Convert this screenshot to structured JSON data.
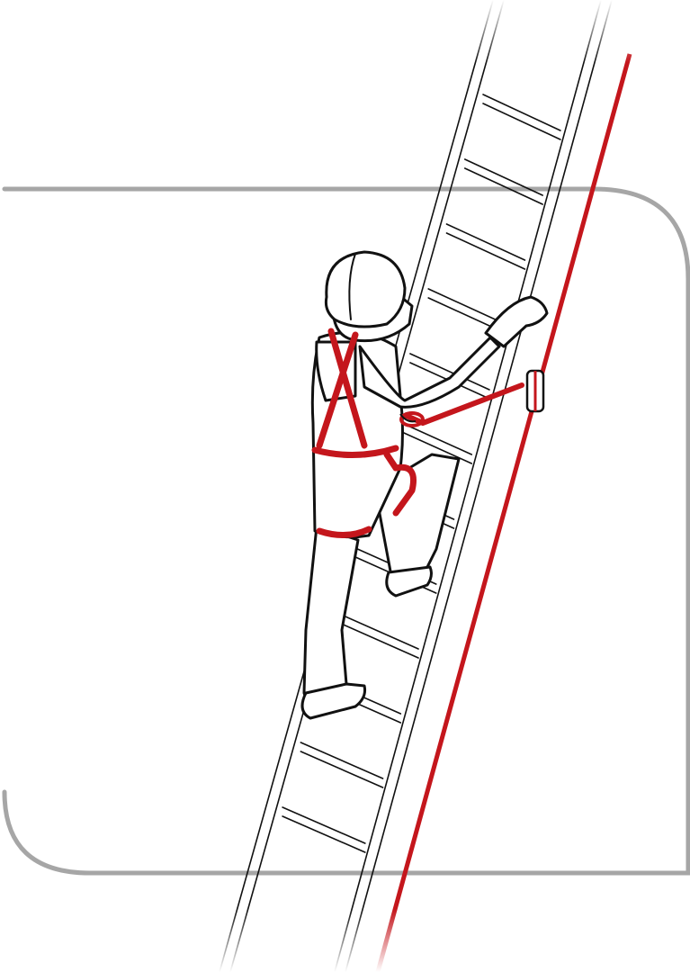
{
  "colors": {
    "background": "#ffffff",
    "frame": "#a6a6a6",
    "ladder_outline": "#111111",
    "safety_rail": "#c4161c",
    "harness": "#c4161c",
    "figure_fill": "#ffffff",
    "figure_outline": "#111111"
  },
  "illustration": {
    "ladder_rungs_visible": 12,
    "icons": [
      "worker-figure",
      "ladder",
      "safety-rail",
      "harness",
      "rope-grab",
      "lanyard",
      "hard-hat"
    ]
  }
}
